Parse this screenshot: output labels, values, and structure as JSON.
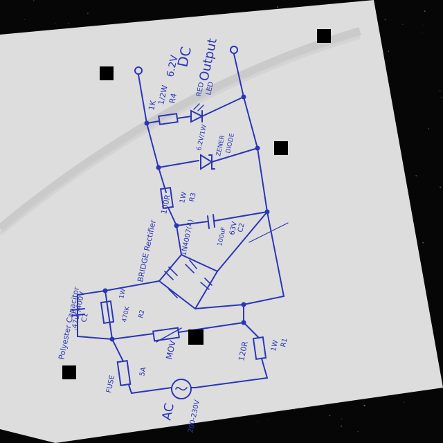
{
  "colors": {
    "ink": "#2a35b8",
    "paper": "#dcdcdc",
    "background": "#060606",
    "redaction": "#000000"
  },
  "output": {
    "dc": "DC",
    "output": "Output",
    "voltage": "6.2V"
  },
  "led": {
    "line1": "RED",
    "line2": "LED"
  },
  "r4": {
    "label": "R4",
    "value": "1K",
    "rating": "1/2W"
  },
  "zener": {
    "rating": "6.2V/1W",
    "name1": "ZENER",
    "name2": "DIODE"
  },
  "r3": {
    "label": "R3",
    "value": "100R",
    "rating": "1W"
  },
  "c2": {
    "label": "C2",
    "voltage": "63V",
    "value": "100uF"
  },
  "bridge": {
    "title": "BRIDGE Rectifier",
    "diode_part": "1N4007(4)"
  },
  "c1": {
    "label": "C1",
    "title": "Polyester Capacitor",
    "value": ".47uF/400V"
  },
  "r2": {
    "label": "R2",
    "value": "470K",
    "rating": "1W"
  },
  "mov": {
    "label": "MOV"
  },
  "r1": {
    "label": "R1",
    "value": "120R",
    "rating": "1W"
  },
  "fuse": {
    "label": "FUSE",
    "rating": "5A"
  },
  "ac": {
    "label": "AC",
    "range": "200-230V"
  }
}
